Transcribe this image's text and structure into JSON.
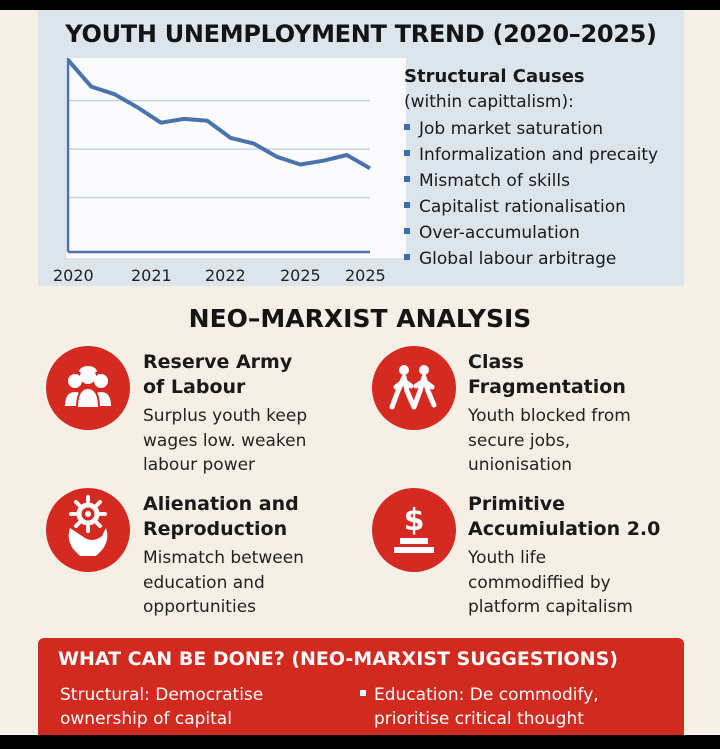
{
  "trend": {
    "title": "YOUTH UNEMPLOYMENT TREND (2020–2025)"
  },
  "chart_data": {
    "type": "line",
    "title": "YOUTH UNEMPLOYMENT TREND (2020–2025)",
    "x_tick_labels": [
      "2020",
      "2021",
      "2022",
      "2025",
      "2025"
    ],
    "grid": true,
    "legend": "none",
    "line_color": "#4a72ac",
    "series": [
      {
        "values": [
          1.0,
          0.86,
          0.82,
          0.75,
          0.67,
          0.69,
          0.68,
          0.59,
          0.56,
          0.49,
          0.45,
          0.47,
          0.5,
          0.43
        ]
      }
    ]
  },
  "causes": {
    "heading": "Structural Causes",
    "subheading": "(within capittalism):",
    "items": [
      "Job market saturation",
      "Informalization and precaity",
      "Mismatch of skills",
      "Capitalist rationalisation",
      "Over-accumulation",
      "Global labour arbitrage"
    ]
  },
  "analysis": {
    "title": "NEO–MARXIST ANALYSIS",
    "items": [
      {
        "icon": "workers-group-icon",
        "title_line1": "Reserve Army",
        "title_line2": "of Labour",
        "body1": "Surplus youth keep",
        "body2": "wages low. weaken",
        "body3": "labour power"
      },
      {
        "icon": "walking-people-icon",
        "title_line1": "Class",
        "title_line2": "Fragmentation",
        "body1": "Youth blocked from",
        "body2": "secure jobs,",
        "body3": "unionisation"
      },
      {
        "icon": "head-gear-icon",
        "title_line1": "Alienation and",
        "title_line2": "Reproduction",
        "body1": "Mismatch between",
        "body2": "education and",
        "body3": "opportunities"
      },
      {
        "icon": "dollar-hand-icon",
        "title_line1": "Primitive",
        "title_line2": "Accumiulation 2.0",
        "body1": "Youth life",
        "body2": "commodiffied by",
        "body3": "platform capitalism"
      }
    ]
  },
  "actions": {
    "title": "WHAT CAN BE DONE? (NEO-MARXIST SUGGESTIONS)",
    "left_line1": "Structural: Democratise",
    "left_line2": "ownership of capital",
    "right_line1": "Education: De commodify,",
    "right_line2": "prioritise critical thought"
  },
  "colors": {
    "accent_red": "#d42a22",
    "chart_line": "#4a72ac",
    "panel_bg": "#dde5ec",
    "page_bg": "#f6efe6"
  }
}
